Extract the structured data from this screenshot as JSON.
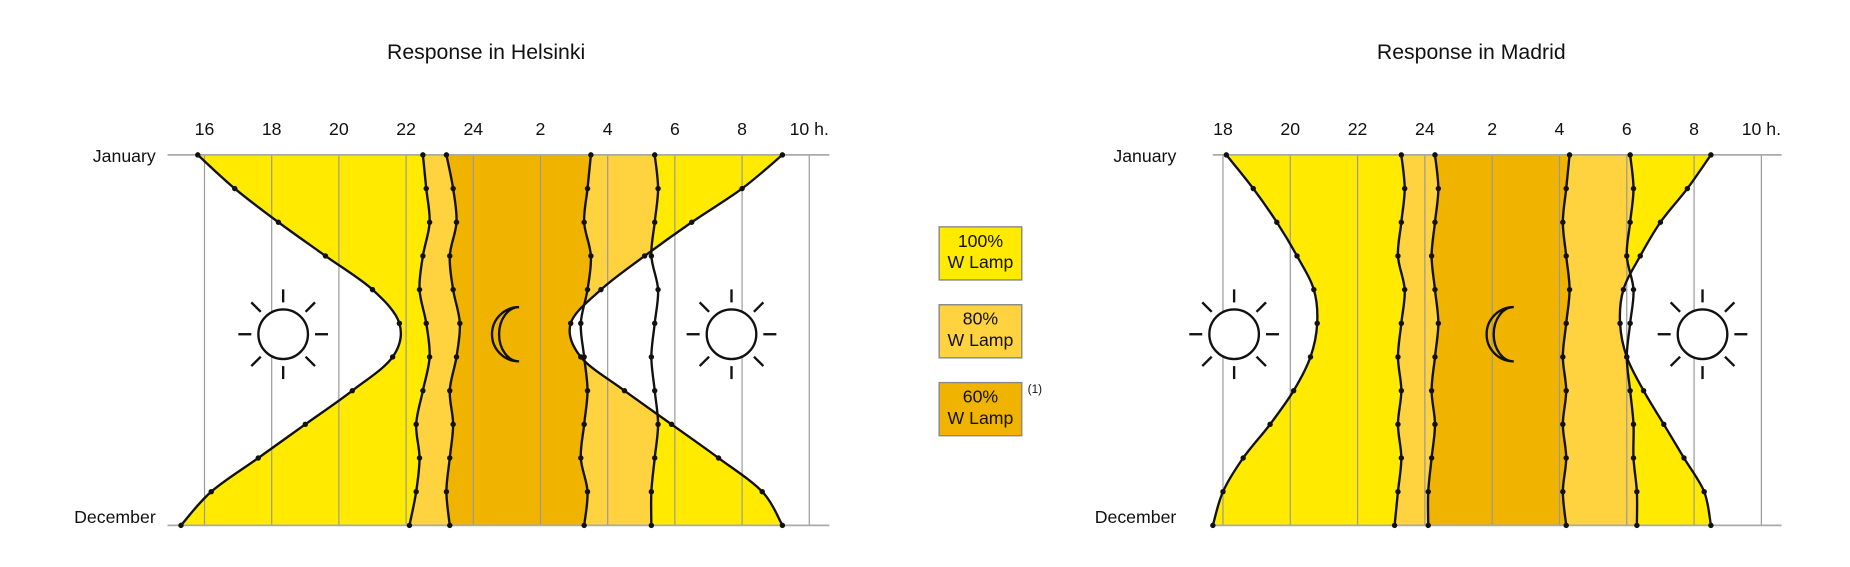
{
  "chart_data": [
    {
      "type": "area",
      "title": "Response in Helsinki",
      "categories": [
        "January",
        null,
        null,
        null,
        null,
        null,
        null,
        null,
        null,
        null,
        null,
        "December"
      ],
      "xlim": [
        14.9,
        34.6
      ],
      "xticks": [
        16,
        18,
        20,
        22,
        24,
        {
          "value": 26,
          "label": "2"
        },
        {
          "value": 28,
          "label": "4"
        },
        {
          "value": 30,
          "label": "6"
        },
        {
          "value": 32,
          "label": "8"
        },
        {
          "value": 34,
          "label": "10 h."
        }
      ],
      "grid": true,
      "series": [
        {
          "color": "#ffea00",
          "values": [
            15.8,
            16.9,
            18.2,
            19.6,
            21.0,
            21.8,
            21.6,
            20.4,
            19.0,
            17.6,
            16.2,
            15.3
          ]
        },
        {
          "color": "#ffd23f",
          "values": [
            22.5,
            22.6,
            22.7,
            22.5,
            22.4,
            22.6,
            22.7,
            22.5,
            22.3,
            22.4,
            22.3,
            22.1
          ]
        },
        {
          "color": "#f0b400",
          "values": [
            23.2,
            23.4,
            23.5,
            23.3,
            23.4,
            23.6,
            23.5,
            23.3,
            23.4,
            23.3,
            23.2,
            23.3
          ]
        },
        {
          "color": "#ffd23f",
          "values": [
            27.5,
            27.4,
            27.3,
            27.5,
            27.4,
            27.2,
            27.3,
            27.4,
            27.3,
            27.2,
            27.4,
            27.3
          ]
        },
        {
          "color": "#ffea00",
          "values": [
            29.4,
            29.5,
            29.4,
            29.3,
            29.5,
            29.4,
            29.3,
            29.4,
            29.5,
            29.4,
            29.3,
            29.3
          ]
        },
        {
          "values": [
            33.2,
            32.0,
            30.5,
            29.1,
            27.8,
            26.9,
            27.2,
            28.5,
            29.9,
            31.3,
            32.6,
            33.2
          ]
        }
      ]
    },
    {
      "type": "area",
      "title": "Response in Madrid",
      "categories": [
        "January",
        null,
        null,
        null,
        null,
        null,
        null,
        null,
        null,
        null,
        null,
        "December"
      ],
      "xlim": [
        17.7,
        34.6
      ],
      "xticks": [
        18,
        20,
        22,
        24,
        {
          "value": 26,
          "label": "2"
        },
        {
          "value": 28,
          "label": "4"
        },
        {
          "value": 30,
          "label": "6"
        },
        {
          "value": 32,
          "label": "8"
        },
        {
          "value": 34,
          "label": "10 h."
        }
      ],
      "grid": true,
      "series": [
        {
          "color": "#ffea00",
          "values": [
            18.1,
            18.9,
            19.6,
            20.2,
            20.7,
            20.8,
            20.6,
            20.1,
            19.4,
            18.6,
            18.0,
            17.7
          ]
        },
        {
          "color": "#ffd23f",
          "values": [
            23.3,
            23.4,
            23.3,
            23.2,
            23.4,
            23.3,
            23.2,
            23.3,
            23.2,
            23.3,
            23.2,
            23.1
          ]
        },
        {
          "color": "#f0b400",
          "values": [
            24.3,
            24.4,
            24.3,
            24.2,
            24.3,
            24.4,
            24.3,
            24.2,
            24.3,
            24.2,
            24.1,
            24.1
          ]
        },
        {
          "color": "#ffd23f",
          "values": [
            28.3,
            28.2,
            28.1,
            28.2,
            28.3,
            28.2,
            28.1,
            28.2,
            28.1,
            28.2,
            28.1,
            28.2
          ]
        },
        {
          "color": "#ffea00",
          "values": [
            30.1,
            30.2,
            30.1,
            30.0,
            30.2,
            30.1,
            30.0,
            30.1,
            30.2,
            30.2,
            30.3,
            30.3
          ]
        },
        {
          "values": [
            32.5,
            31.8,
            31.0,
            30.4,
            29.9,
            29.8,
            30.0,
            30.5,
            31.1,
            31.7,
            32.3,
            32.5
          ]
        }
      ]
    }
  ],
  "legend": [
    {
      "color": "#ffea00",
      "lines": [
        "100%",
        "W Lamp"
      ]
    },
    {
      "color": "#ffd23f",
      "lines": [
        "80%",
        "W Lamp"
      ]
    },
    {
      "color": "#f0b400",
      "lines": [
        "60%",
        "W Lamp"
      ],
      "note": "(1)"
    }
  ]
}
